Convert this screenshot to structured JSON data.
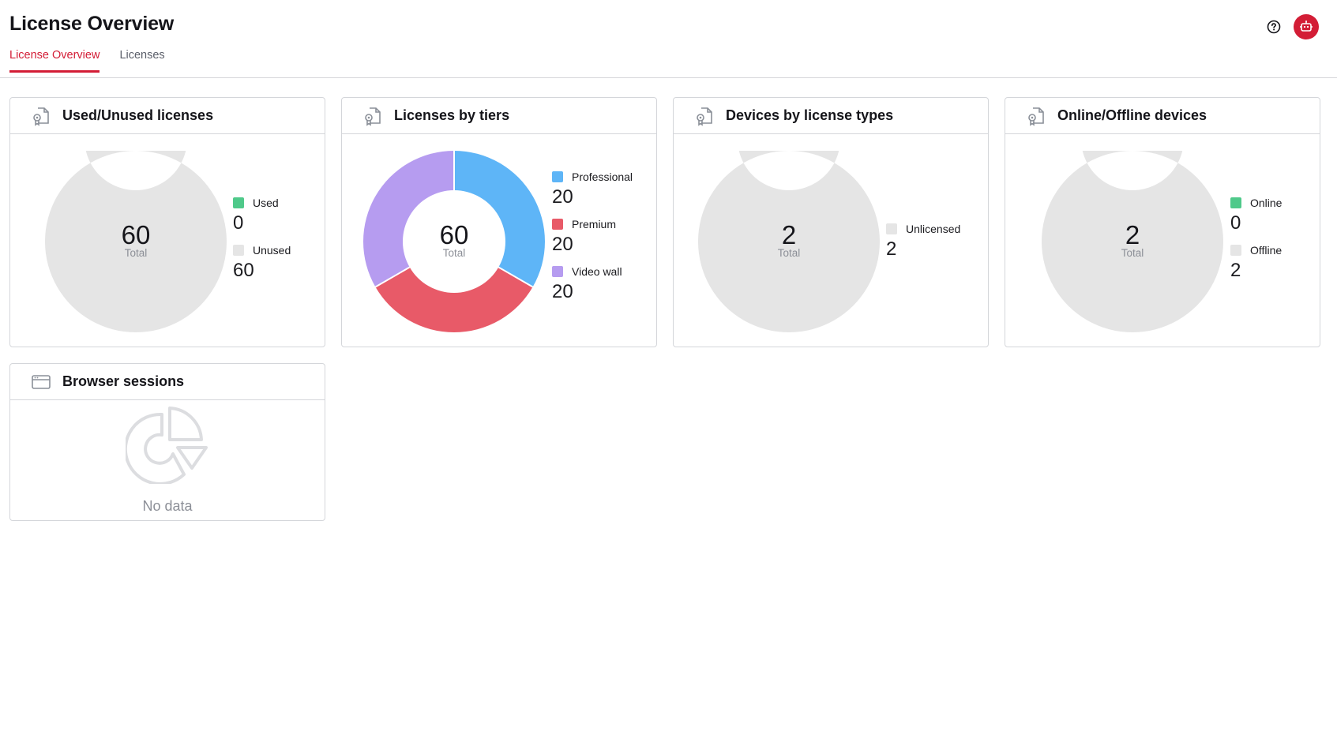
{
  "page": {
    "title": "License Overview"
  },
  "tabs": [
    {
      "label": "License Overview",
      "active": true
    },
    {
      "label": "Licenses",
      "active": false
    }
  ],
  "header_icons": {
    "help": "help-circle-icon",
    "assistant": "robot-icon"
  },
  "colors": {
    "accent": "#d31d36",
    "used": "#4fc98a",
    "unused": "#e5e5e5",
    "professional": "#5eb5f7",
    "premium": "#e85a68",
    "video_wall": "#b69cf0"
  },
  "cards": [
    {
      "title": "Used/Unused licenses",
      "icon": "license-certificate-icon",
      "center_value": "60",
      "center_label": "Total",
      "legend": [
        {
          "label": "Used",
          "value": "0"
        },
        {
          "label": "Unused",
          "value": "60"
        }
      ]
    },
    {
      "title": "Licenses by tiers",
      "icon": "license-certificate-icon",
      "center_value": "60",
      "center_label": "Total",
      "legend": [
        {
          "label": "Professional",
          "value": "20"
        },
        {
          "label": "Premium",
          "value": "20"
        },
        {
          "label": "Video wall",
          "value": "20"
        }
      ]
    },
    {
      "title": "Devices by license types",
      "icon": "license-certificate-icon",
      "center_value": "2",
      "center_label": "Total",
      "legend": [
        {
          "label": "Unlicensed",
          "value": "2"
        }
      ]
    },
    {
      "title": "Online/Offline devices",
      "icon": "license-certificate-icon",
      "center_value": "2",
      "center_label": "Total",
      "legend": [
        {
          "label": "Online",
          "value": "0"
        },
        {
          "label": "Offline",
          "value": "2"
        }
      ]
    },
    {
      "title": "Browser sessions",
      "icon": "browser-window-icon",
      "empty_icon": "pie-chart-icon",
      "empty_text": "No data"
    }
  ],
  "chart_data": [
    {
      "type": "pie",
      "categories": [
        "Used",
        "Unused"
      ],
      "values": [
        0,
        60
      ]
    },
    {
      "type": "pie",
      "categories": [
        "Professional",
        "Premium",
        "Video wall"
      ],
      "values": [
        20,
        20,
        20
      ]
    },
    {
      "type": "pie",
      "categories": [
        "Unlicensed"
      ],
      "values": [
        2
      ]
    },
    {
      "type": "pie",
      "categories": [
        "Online",
        "Offline"
      ],
      "values": [
        0,
        2
      ]
    }
  ]
}
